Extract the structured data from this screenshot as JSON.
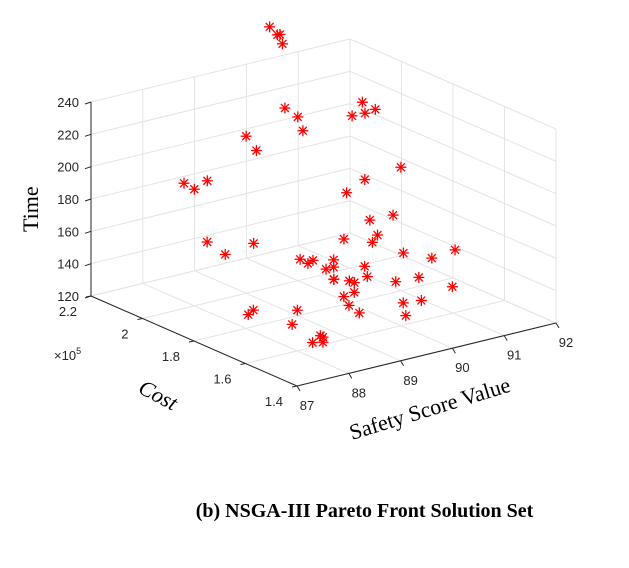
{
  "chart_data": {
    "type": "scatter",
    "projection": "3d",
    "xlabel": "Safety Score Value",
    "ylabel": "Cost",
    "zlabel": "Time",
    "xlim": [
      87,
      92
    ],
    "ylim": [
      1.4,
      2.2
    ],
    "zlim": [
      120,
      240
    ],
    "xticks": [
      "87",
      "88",
      "89",
      "90",
      "91",
      "92"
    ],
    "yticks": [
      "1.4",
      "1.6",
      "1.8",
      "2",
      "2.2"
    ],
    "zticks": [
      "120",
      "140",
      "160",
      "180",
      "200",
      "220",
      "240"
    ],
    "y_exponent_base": "×10",
    "y_exponent_power": "5",
    "grid": true,
    "marker": "asterisk",
    "marker_color": "#ff0000",
    "points": [
      {
        "x": 87.6,
        "y": 1.42,
        "z": 141
      },
      {
        "x": 87.7,
        "y": 1.44,
        "z": 142
      },
      {
        "x": 87.6,
        "y": 1.46,
        "z": 138
      },
      {
        "x": 87.8,
        "y": 1.47,
        "z": 140
      },
      {
        "x": 87.55,
        "y": 1.7,
        "z": 139
      },
      {
        "x": 87.65,
        "y": 1.7,
        "z": 141
      },
      {
        "x": 88.0,
        "y": 1.62,
        "z": 135
      },
      {
        "x": 88.1,
        "y": 1.62,
        "z": 143
      },
      {
        "x": 88.6,
        "y": 1.52,
        "z": 149
      },
      {
        "x": 88.65,
        "y": 1.55,
        "z": 152
      },
      {
        "x": 88.9,
        "y": 1.56,
        "z": 152
      },
      {
        "x": 88.7,
        "y": 1.5,
        "z": 145
      },
      {
        "x": 89.3,
        "y": 1.45,
        "z": 150
      },
      {
        "x": 89.2,
        "y": 1.42,
        "z": 145
      },
      {
        "x": 89.5,
        "y": 1.42,
        "z": 152
      },
      {
        "x": 89.7,
        "y": 1.8,
        "z": 137
      },
      {
        "x": 89.8,
        "y": 1.82,
        "z": 135
      },
      {
        "x": 89.9,
        "y": 1.78,
        "z": 136
      },
      {
        "x": 90.0,
        "y": 1.4,
        "z": 158
      },
      {
        "x": 89.85,
        "y": 1.5,
        "z": 158
      },
      {
        "x": 89.8,
        "y": 1.55,
        "z": 170
      },
      {
        "x": 90.3,
        "y": 1.45,
        "z": 175
      },
      {
        "x": 90.1,
        "y": 1.5,
        "z": 168
      },
      {
        "x": 89.9,
        "y": 1.6,
        "z": 148
      },
      {
        "x": 89.6,
        "y": 1.65,
        "z": 150
      },
      {
        "x": 89.4,
        "y": 1.62,
        "z": 160
      },
      {
        "x": 89.2,
        "y": 1.7,
        "z": 160
      },
      {
        "x": 89.3,
        "y": 1.75,
        "z": 150
      },
      {
        "x": 89.5,
        "y": 1.68,
        "z": 145
      },
      {
        "x": 89.1,
        "y": 1.78,
        "z": 153
      },
      {
        "x": 88.8,
        "y": 1.75,
        "z": 160
      },
      {
        "x": 88.7,
        "y": 1.68,
        "z": 165
      },
      {
        "x": 88.9,
        "y": 1.64,
        "z": 162
      },
      {
        "x": 88.0,
        "y": 1.95,
        "z": 163
      },
      {
        "x": 88.1,
        "y": 1.9,
        "z": 158
      },
      {
        "x": 88.4,
        "y": 1.85,
        "z": 166
      },
      {
        "x": 88.1,
        "y": 2.02,
        "z": 190
      },
      {
        "x": 88.5,
        "y": 2.05,
        "z": 190
      },
      {
        "x": 88.05,
        "y": 2.05,
        "z": 192
      },
      {
        "x": 89.0,
        "y": 1.62,
        "z": 180
      },
      {
        "x": 89.3,
        "y": 1.55,
        "z": 185
      },
      {
        "x": 89.35,
        "y": 1.58,
        "z": 178
      },
      {
        "x": 89.4,
        "y": 1.6,
        "z": 190
      },
      {
        "x": 89.6,
        "y": 1.55,
        "z": 195
      },
      {
        "x": 89.2,
        "y": 1.65,
        "z": 205
      },
      {
        "x": 89.8,
        "y": 1.7,
        "z": 205
      },
      {
        "x": 90.0,
        "y": 1.6,
        "z": 218
      },
      {
        "x": 89.05,
        "y": 1.97,
        "z": 210
      },
      {
        "x": 89.1,
        "y": 2.02,
        "z": 215
      },
      {
        "x": 89.6,
        "y": 1.97,
        "z": 232
      },
      {
        "x": 89.5,
        "y": 1.88,
        "z": 225
      },
      {
        "x": 89.6,
        "y": 1.92,
        "z": 230
      },
      {
        "x": 90.4,
        "y": 1.82,
        "z": 233
      },
      {
        "x": 90.5,
        "y": 1.8,
        "z": 236
      },
      {
        "x": 90.45,
        "y": 1.84,
        "z": 238
      },
      {
        "x": 90.35,
        "y": 1.86,
        "z": 229
      },
      {
        "x": 90.2,
        "y": 2.1,
        "z": 258
      },
      {
        "x": 90.25,
        "y": 2.12,
        "z": 262
      },
      {
        "x": 90.3,
        "y": 2.14,
        "z": 260
      },
      {
        "x": 90.2,
        "y": 2.15,
        "z": 265
      }
    ]
  },
  "caption": "(b) NSGA-III Pareto Front Solution Set"
}
